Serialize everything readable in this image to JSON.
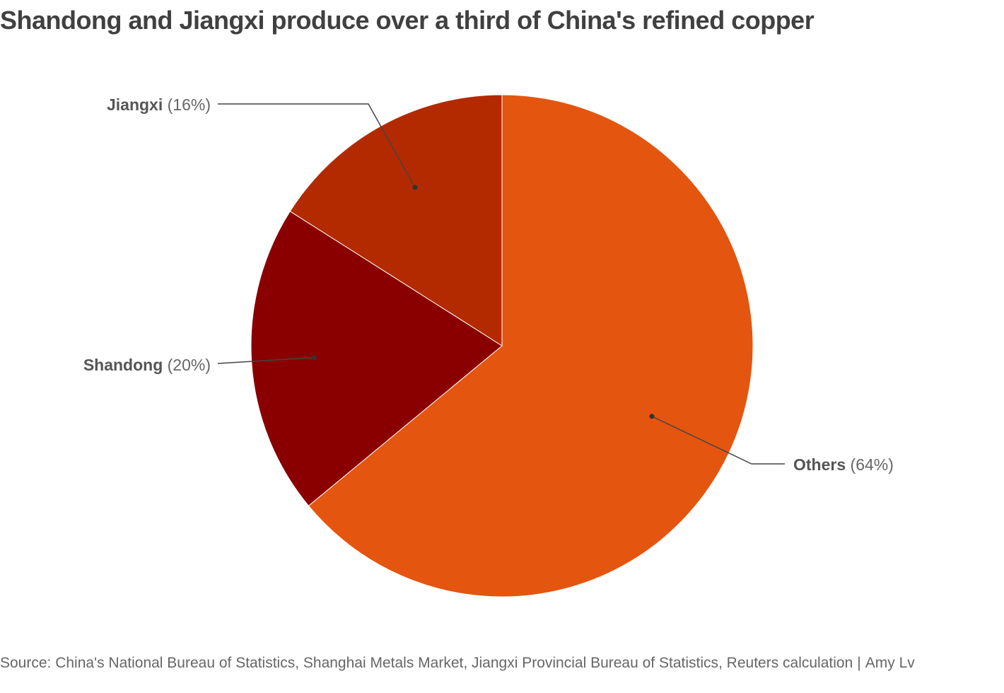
{
  "chart_data": {
    "type": "pie",
    "title": "Shandong and Jiangxi produce over a third of China's refined copper",
    "slices": [
      {
        "name": "Others",
        "value": 64,
        "color": "#e4550f"
      },
      {
        "name": "Shandong",
        "value": 20,
        "color": "#8a0000"
      },
      {
        "name": "Jiangxi",
        "value": 16,
        "color": "#b32a00"
      }
    ],
    "label_format": "({value}%)"
  },
  "footer": {
    "source": "Source: China's National Bureau of Statistics, Shanghai Metals Market, Jiangxi Provincial Bureau of Statistics, Reuters calculation",
    "separator": "|",
    "author": "Amy Lv"
  }
}
